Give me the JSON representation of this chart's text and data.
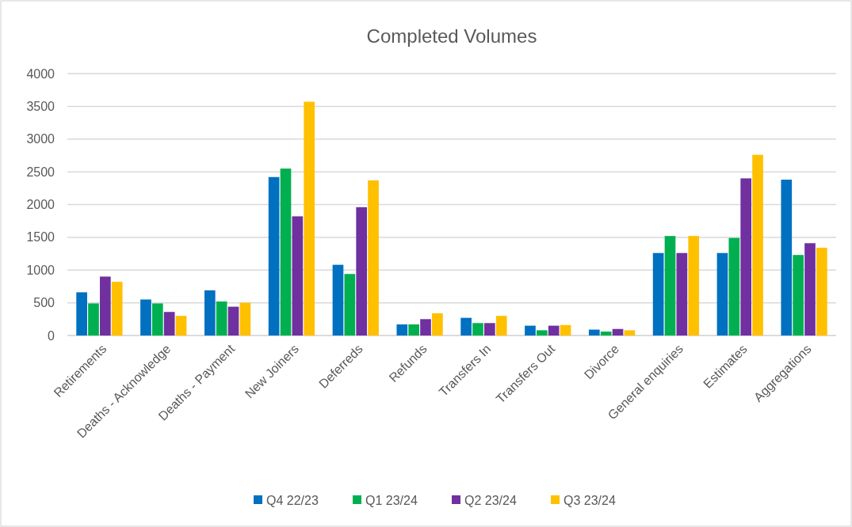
{
  "chart_data": {
    "type": "bar",
    "title": "Completed Volumes",
    "categories": [
      "Retirements",
      "Deaths - Acknowledge",
      "Deaths - Payment",
      "New Joiners",
      "Deferreds",
      "Refunds",
      "Transfers In",
      "Transfers Out",
      "Divorce",
      "General enquiries",
      "Estimates",
      "Aggregations"
    ],
    "series": [
      {
        "name": "Q4 22/23",
        "color": "#0070c0",
        "values": [
          660,
          550,
          690,
          2420,
          1080,
          170,
          270,
          150,
          90,
          1260,
          1260,
          2380
        ]
      },
      {
        "name": "Q1 23/24",
        "color": "#00b050",
        "values": [
          490,
          490,
          520,
          2550,
          940,
          170,
          190,
          80,
          60,
          1520,
          1490,
          1230
        ]
      },
      {
        "name": "Q2 23/24",
        "color": "#7030a0",
        "values": [
          900,
          360,
          440,
          1820,
          1960,
          250,
          190,
          150,
          100,
          1260,
          2400,
          1410
        ]
      },
      {
        "name": "Q3 23/24",
        "color": "#ffc000",
        "values": [
          820,
          300,
          500,
          3570,
          2370,
          340,
          300,
          160,
          80,
          1520,
          2760,
          1340
        ]
      }
    ],
    "ylim": [
      0,
      4000
    ],
    "yticks": [
      0,
      500,
      1000,
      1500,
      2000,
      2500,
      3000,
      3500,
      4000
    ],
    "grid": "y",
    "legend": "bottom"
  }
}
